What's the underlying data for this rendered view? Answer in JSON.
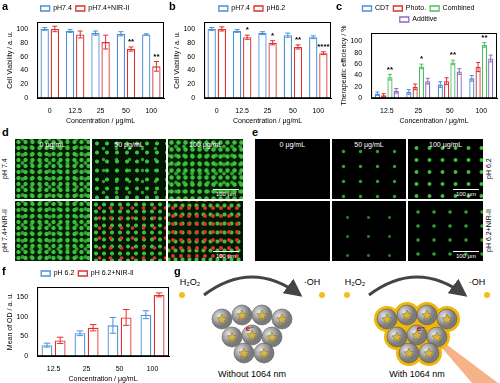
{
  "chart_data": [
    {
      "type": "bar",
      "title": "a",
      "x_label": "Concentration / μg/mL",
      "y_label": "Cell Viability / a. u.",
      "categories": [
        "0",
        "12.5",
        "25",
        "50",
        "100"
      ],
      "series": [
        {
          "name": "pH7.4",
          "color": "#4a90d9",
          "values": [
            100,
            97,
            94,
            93,
            92
          ],
          "errors": [
            2,
            2,
            3,
            3,
            1
          ]
        },
        {
          "name": "pH7.4+NIR-II",
          "color": "#e0302f",
          "values": [
            100,
            92,
            81,
            71,
            46
          ],
          "errors": [
            4,
            5,
            10,
            3,
            7
          ]
        }
      ],
      "ylim": [
        0,
        110
      ],
      "yticks": [
        0,
        20,
        40,
        60,
        80,
        100
      ],
      "grid": false,
      "legend": "top",
      "annotations": [
        {
          "category": "50",
          "series": "pH7.4+NIR-II",
          "text": "**"
        },
        {
          "category": "100",
          "series": "pH7.4+NIR-II",
          "text": "**"
        }
      ]
    },
    {
      "type": "bar",
      "title": "b",
      "x_label": "Concentration / μg/mL",
      "y_label": "Cell Viability / a. u.",
      "categories": [
        "0",
        "12.5",
        "25",
        "50",
        "100"
      ],
      "series": [
        {
          "name": "pH7.4",
          "color": "#4a90d9",
          "values": [
            100,
            97,
            94,
            91,
            88
          ],
          "errors": [
            2,
            2,
            2,
            3,
            2
          ]
        },
        {
          "name": "pH6.2",
          "color": "#e0302f",
          "values": [
            100,
            88,
            80,
            74,
            65
          ],
          "errors": [
            3,
            3,
            3,
            3,
            2
          ]
        }
      ],
      "ylim": [
        0,
        110
      ],
      "yticks": [
        0,
        20,
        40,
        60,
        80,
        100
      ],
      "grid": false,
      "legend": "top",
      "annotations": [
        {
          "category": "12.5",
          "series": "pH6.2",
          "text": "*"
        },
        {
          "category": "25",
          "series": "pH6.2",
          "text": "*"
        },
        {
          "category": "50",
          "series": "pH6.2",
          "text": "**"
        },
        {
          "category": "100",
          "series": "pH6.2",
          "text": "****"
        }
      ]
    },
    {
      "type": "bar",
      "title": "c",
      "x_label": "Concentration / μg/mL",
      "y_label": "Therapeutic efficiency / %",
      "categories": [
        "12.5",
        "25",
        "50",
        "100"
      ],
      "series": [
        {
          "name": "CDT",
          "color": "#4a90d9",
          "values": [
            8,
            11,
            24,
            35
          ],
          "errors": [
            3,
            4,
            5,
            5
          ]
        },
        {
          "name": "Photo.",
          "color": "#e0302f",
          "values": [
            5,
            20,
            30,
            55
          ],
          "errors": [
            3,
            5,
            6,
            8
          ]
        },
        {
          "name": "Combined",
          "color": "#4cbf5e",
          "values": [
            37,
            56,
            63,
            94
          ],
          "errors": [
            5,
            4,
            4,
            4
          ]
        },
        {
          "name": "Additive",
          "color": "#8e6bbf",
          "values": [
            13,
            30,
            47,
            70
          ],
          "errors": [
            4,
            5,
            5,
            6
          ]
        }
      ],
      "ylim": [
        0,
        115
      ],
      "yticks": [
        0,
        20,
        40,
        60,
        80,
        100
      ],
      "grid": false,
      "legend": "top",
      "annotations": [
        {
          "category": "12.5",
          "series": "Combined",
          "text": "**"
        },
        {
          "category": "25",
          "series": "Combined",
          "text": "*"
        },
        {
          "category": "50",
          "series": "Combined",
          "text": "**"
        },
        {
          "category": "100",
          "series": "Combined",
          "text": "**"
        }
      ]
    },
    {
      "type": "bar",
      "title": "f",
      "x_label": "Concentration / μg/mL",
      "y_label": "Mean of OD / a. u.",
      "categories": [
        "12.5",
        "25",
        "50",
        "100"
      ],
      "series": [
        {
          "name": "pH 6.2",
          "color": "#4a90d9",
          "values": [
            28,
            58,
            78,
            105
          ],
          "errors": [
            5,
            6,
            20,
            10
          ]
        },
        {
          "name": "pH 6.2+NIR-II",
          "color": "#e0302f",
          "values": [
            40,
            72,
            98,
            155
          ],
          "errors": [
            8,
            8,
            20,
            5
          ]
        }
      ],
      "ylim": [
        0,
        175
      ],
      "yticks": [
        0,
        50,
        100,
        150
      ],
      "grid": false,
      "legend": "top",
      "annotations": []
    }
  ],
  "micrographs": [
    {
      "title": "d",
      "columns": [
        "0 μg/mL",
        "50 μg/mL",
        "100 μg/mL"
      ],
      "rows": [
        "pH 7.4",
        "pH 7.4+NIR-II"
      ],
      "scale_bar": "100 μm"
    },
    {
      "title": "e",
      "columns": [
        "0 μg/mL",
        "50 μg/mL",
        "100 μg/mL"
      ],
      "rows": [
        "pH 6.2",
        "pH 6.2+NIR-II"
      ],
      "scale_bar": "100 μm"
    }
  ],
  "schematic": {
    "title": "g",
    "reactant": "H₂O₂",
    "product": "·OH",
    "electron": "e⁻",
    "panels": [
      "Without 1064 nm",
      "With 1064 nm"
    ]
  }
}
